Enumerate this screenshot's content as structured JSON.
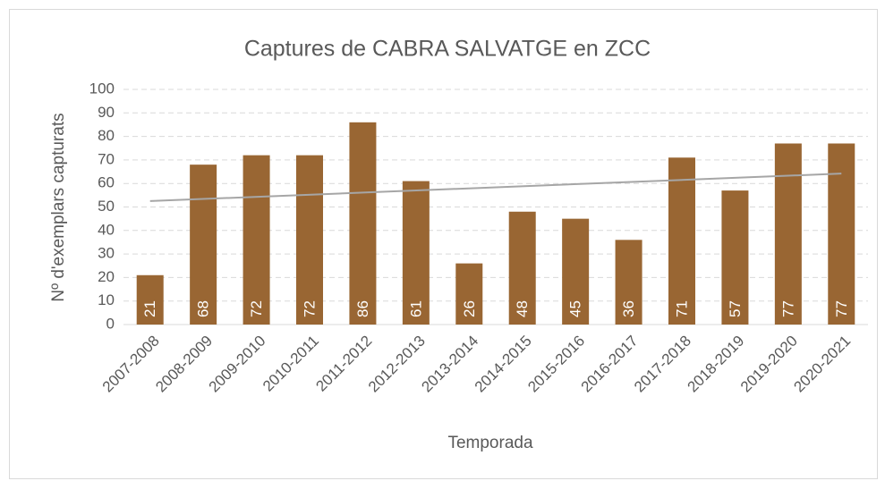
{
  "chart_data": {
    "type": "bar",
    "title": "Captures de CABRA SALVATGE en ZCC",
    "x_label": "Temporada",
    "y_label": "Nº d'exemplars capturats",
    "categories": [
      "2007-2008",
      "2008-2009",
      "2009-2010",
      "2010-2011",
      "2011-2012",
      "2012-2013",
      "2013-2014",
      "2014-2015",
      "2015-2016",
      "2016-2017",
      "2017-2018",
      "2018-2019",
      "2019-2020",
      "2020-2021"
    ],
    "values": [
      21,
      68,
      72,
      72,
      86,
      61,
      26,
      48,
      45,
      36,
      71,
      57,
      77,
      77
    ],
    "color": "#996633",
    "trendline": true,
    "trendline_color": "#a6a6a6",
    "ylim": [
      0,
      100
    ],
    "yticks": [
      0,
      10,
      20,
      30,
      40,
      50,
      60,
      70,
      80,
      90,
      100
    ],
    "grid": true
  }
}
